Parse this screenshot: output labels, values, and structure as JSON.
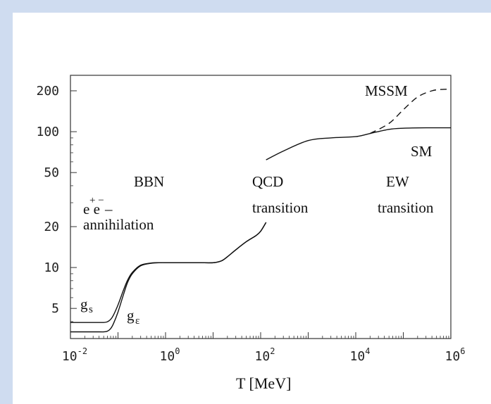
{
  "chart_data": {
    "type": "line",
    "xlabel": "T [MeV]",
    "xscale": "log",
    "yscale": "log",
    "xlim": [
      0.01,
      1000000
    ],
    "ylim": [
      3.0,
      260
    ],
    "x_ticks": [
      {
        "value": 0.01,
        "base": "10",
        "exp": "-2"
      },
      {
        "value": 1,
        "base": "10",
        "exp": "0"
      },
      {
        "value": 100,
        "base": "10",
        "exp": "2"
      },
      {
        "value": 10000,
        "base": "10",
        "exp": "4"
      },
      {
        "value": 1000000,
        "base": "10",
        "exp": "6"
      }
    ],
    "y_ticks": [
      5,
      10,
      20,
      50,
      100,
      200
    ],
    "series": [
      {
        "name": "gs",
        "style": "solid",
        "x": [
          0.01,
          0.04,
          0.05,
          0.06,
          0.07,
          0.08,
          0.1,
          0.13,
          0.16,
          0.2,
          0.3,
          0.5,
          0.8,
          1,
          2,
          5,
          10,
          15,
          20,
          30,
          50,
          80,
          100,
          130
        ],
        "y": [
          3.94,
          3.94,
          3.94,
          3.99,
          4.15,
          4.45,
          5.3,
          6.8,
          8.1,
          9.2,
          10.4,
          10.8,
          10.85,
          10.85,
          10.85,
          10.85,
          10.85,
          11.2,
          12.0,
          13.5,
          15.5,
          17.2,
          18.5,
          21.5
        ]
      },
      {
        "name": "gε",
        "style": "solid",
        "x": [
          0.01,
          0.04,
          0.05,
          0.06,
          0.07,
          0.08,
          0.1,
          0.13,
          0.16,
          0.2,
          0.3,
          0.5,
          0.8,
          1,
          2,
          5,
          10,
          15,
          20,
          30,
          50,
          80,
          100,
          130
        ],
        "y": [
          3.36,
          3.36,
          3.36,
          3.4,
          3.55,
          3.85,
          4.7,
          6.3,
          7.8,
          9.0,
          10.3,
          10.75,
          10.85,
          10.85,
          10.85,
          10.85,
          10.85,
          11.2,
          12.0,
          13.5,
          15.5,
          17.2,
          18.5,
          21.5
        ]
      },
      {
        "name": "SM",
        "style": "solid",
        "x": [
          130,
          300,
          1000,
          3000,
          10000,
          20000,
          50000,
          100000,
          300000,
          1000000
        ],
        "y": [
          62,
          72,
          86,
          90,
          92,
          97,
          104,
          106,
          106.75,
          106.75
        ]
      },
      {
        "name": "MSSM",
        "style": "dashed",
        "x": [
          20000,
          50000,
          100000,
          200000,
          400000,
          700000,
          1000000
        ],
        "y": [
          97,
          115,
          145,
          180,
          200,
          205,
          205
        ]
      }
    ],
    "annotations": {
      "bbn": "BBN",
      "ee_base": "e e",
      "ee_sup": "+ −",
      "ee_dash": "–",
      "annihilation": "annihilation",
      "qcd": "QCD",
      "qcd_transition": "transition",
      "ew": "EW",
      "ew_transition": "transition",
      "mssm": "MSSM",
      "sm": "SM",
      "gs_base": "g",
      "gs_sub": "s",
      "ge_base": "g",
      "ge_sub": "ε"
    }
  }
}
